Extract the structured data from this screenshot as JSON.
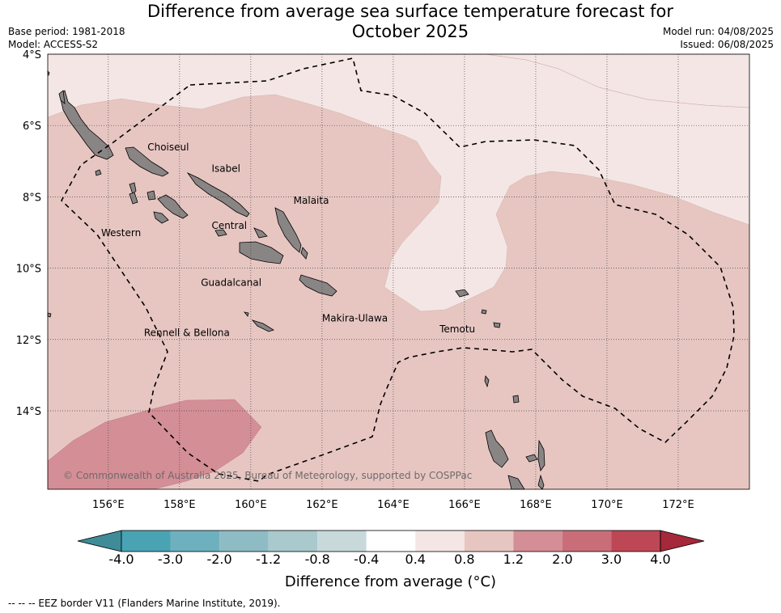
{
  "title": "Difference from average sea surface temperature forecast for October 2025",
  "meta_left": {
    "base_period": "Base period: 1981-2018",
    "model": "Model: ACCESS-S2"
  },
  "meta_right": {
    "model_run": "Model run: 04/08/2025",
    "issued": "Issued: 06/08/2025"
  },
  "map": {
    "lon_range": [
      154.3,
      174.0
    ],
    "lat_range": [
      -16.2,
      -4.0
    ],
    "lat_ticks": [
      {
        "v": -4,
        "label": "4°S"
      },
      {
        "v": -6,
        "label": "6°S"
      },
      {
        "v": -8,
        "label": "8°S"
      },
      {
        "v": -10,
        "label": "10°S"
      },
      {
        "v": -12,
        "label": "12°S"
      },
      {
        "v": -14,
        "label": "14°S"
      }
    ],
    "lon_ticks": [
      {
        "v": 156,
        "label": "156°E"
      },
      {
        "v": 158,
        "label": "158°E"
      },
      {
        "v": 160,
        "label": "160°E"
      },
      {
        "v": 162,
        "label": "162°E"
      },
      {
        "v": 164,
        "label": "164°E"
      },
      {
        "v": 166,
        "label": "166°E"
      },
      {
        "v": 168,
        "label": "168°E"
      },
      {
        "v": 170,
        "label": "170°E"
      },
      {
        "v": 172,
        "label": "172°E"
      }
    ],
    "background_color": "#e7c6c2",
    "regions": [
      {
        "name": "Choiseul",
        "lon": 157.1,
        "lat": -6.7
      },
      {
        "name": "Isabel",
        "lon": 158.9,
        "lat": -7.3
      },
      {
        "name": "Malaita",
        "lon": 161.2,
        "lat": -8.2
      },
      {
        "name": "Western",
        "lon": 155.8,
        "lat": -9.1
      },
      {
        "name": "Central",
        "lon": 158.9,
        "lat": -8.9
      },
      {
        "name": "Guadalcanal",
        "lon": 158.6,
        "lat": -10.5
      },
      {
        "name": "Makira-Ulawa",
        "lon": 162.0,
        "lat": -11.5
      },
      {
        "name": "Rennell & Bellona",
        "lon": 157.0,
        "lat": -11.9
      },
      {
        "name": "Temotu",
        "lon": 165.3,
        "lat": -11.8
      }
    ],
    "copyright": "© Commonwealth of Australia 2025, Bureau of Meteorology, supported by COSPPac"
  },
  "colorbar": {
    "title": "Difference from average (°C)",
    "colors": [
      "#3e8c98",
      "#4aa3b3",
      "#6fb0be",
      "#8ebcc5",
      "#a9c9cd",
      "#c8d9dc",
      "#ffffff",
      "#f4e6e4",
      "#e7c6c2",
      "#d48e96",
      "#c96e79",
      "#be4756",
      "#a5283b"
    ],
    "ticks": [
      "-4.0",
      "-3.0",
      "-2.0",
      "-1.2",
      "-0.8",
      "-0.4",
      "0.4",
      "0.8",
      "1.2",
      "2.0",
      "3.0",
      "4.0"
    ]
  },
  "footer": "--  --  -- EEZ border V11 (Flanders Marine Institute, 2019)."
}
